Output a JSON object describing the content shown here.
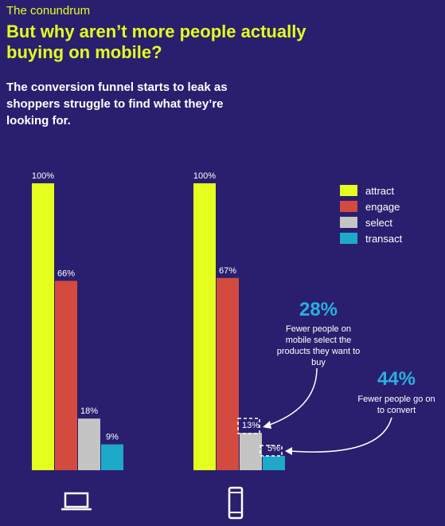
{
  "header": {
    "kicker": "The conundrum",
    "headline": "But why aren’t more people actually buying on mobile?",
    "subhead": "The conversion funnel starts to leak as shoppers struggle to find what they’re looking for."
  },
  "colors": {
    "background": "#2a1f6e",
    "attract": "#e4ff1e",
    "engage": "#d34a3f",
    "select": "#c4c4c4",
    "transact": "#1fa9c9",
    "callout_blue": "#2aaee0"
  },
  "legend": [
    {
      "label": "attract",
      "color": "#e4ff1e"
    },
    {
      "label": "engage",
      "color": "#d34a3f"
    },
    {
      "label": "select",
      "color": "#c4c4c4"
    },
    {
      "label": "transact",
      "color": "#1fa9c9"
    }
  ],
  "chart_data": {
    "type": "bar",
    "categories": [
      "attract",
      "engage",
      "select",
      "transact"
    ],
    "ylim": [
      0,
      100
    ],
    "groups": [
      {
        "icon": "laptop-icon",
        "values": [
          100,
          66,
          18,
          9
        ],
        "labels": [
          "100%",
          "66%",
          "18%",
          "9%"
        ]
      },
      {
        "icon": "mobile-phone-icon",
        "values": [
          100,
          67,
          13,
          5
        ],
        "labels": [
          "100%",
          "67%",
          "13%",
          "5%"
        ]
      }
    ]
  },
  "callouts": [
    {
      "value": "28%",
      "text": "Fewer people on mobile select the products they want to buy"
    },
    {
      "value": "44%",
      "text": "Fewer people go on to convert"
    }
  ]
}
